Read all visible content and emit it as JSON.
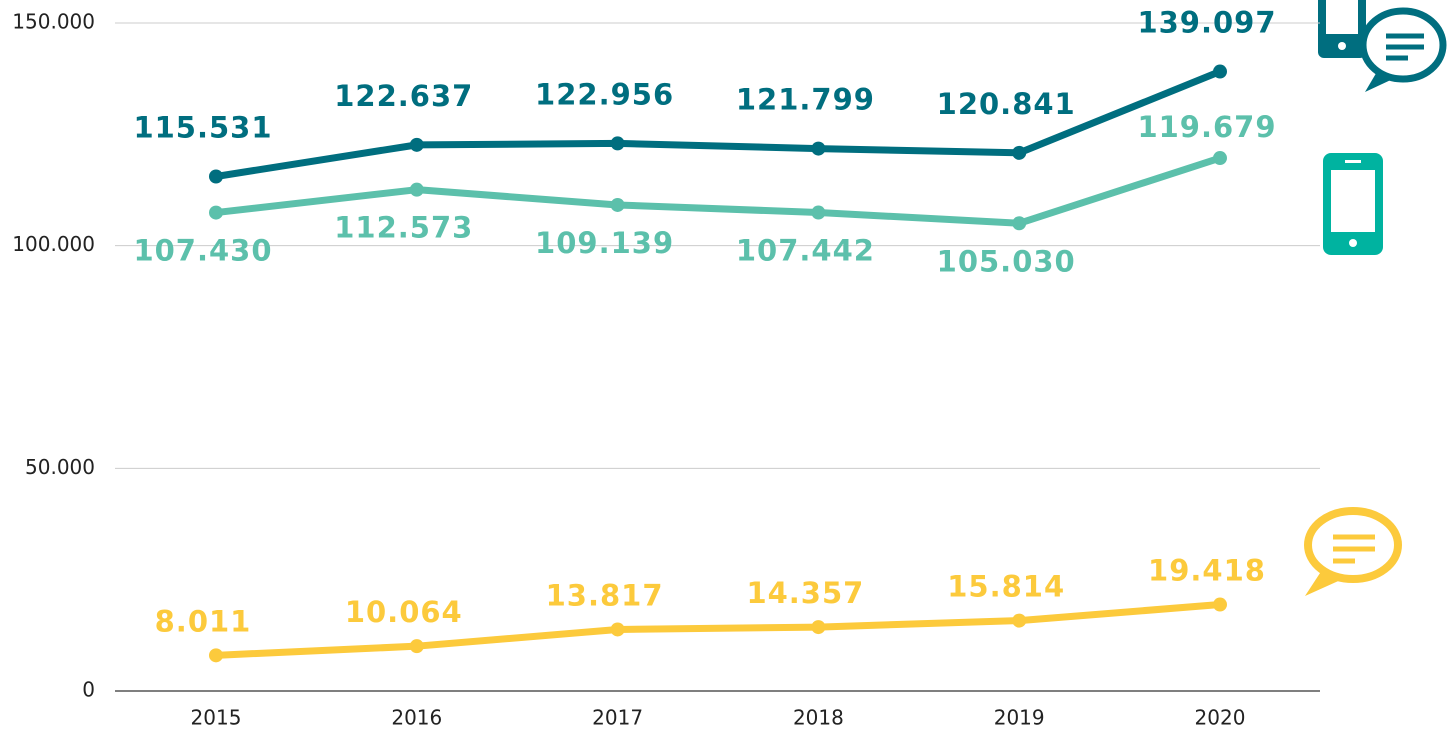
{
  "chart_data": {
    "type": "line",
    "categories": [
      "2015",
      "2016",
      "2017",
      "2018",
      "2019",
      "2020"
    ],
    "series": [
      {
        "color": "#006e7f",
        "values": [
          115531,
          122637,
          122956,
          121799,
          120841,
          139097
        ],
        "value_labels": [
          "115.531",
          "122.637",
          "122.956",
          "121.799",
          "120.841",
          "139.097"
        ]
      },
      {
        "color": "#5cc0ab",
        "values": [
          107430,
          112573,
          109139,
          107442,
          105030,
          119679
        ],
        "value_labels": [
          "107.430",
          "112.573",
          "109.139",
          "107.442",
          "105.030",
          "119.679"
        ]
      },
      {
        "color": "#fcca3c",
        "values": [
          8011,
          10064,
          13817,
          14357,
          15814,
          19418
        ],
        "value_labels": [
          "8.011",
          "10.064",
          "13.817",
          "14.357",
          "15.814",
          "19.418"
        ]
      }
    ],
    "ylim": [
      0,
      150000
    ],
    "yticks": [
      0,
      {
        "value": 50000,
        "label": "50.000"
      },
      {
        "value": 100000,
        "label": "100.000"
      },
      {
        "value": 150000,
        "label": "150.000"
      }
    ],
    "grid": true
  }
}
